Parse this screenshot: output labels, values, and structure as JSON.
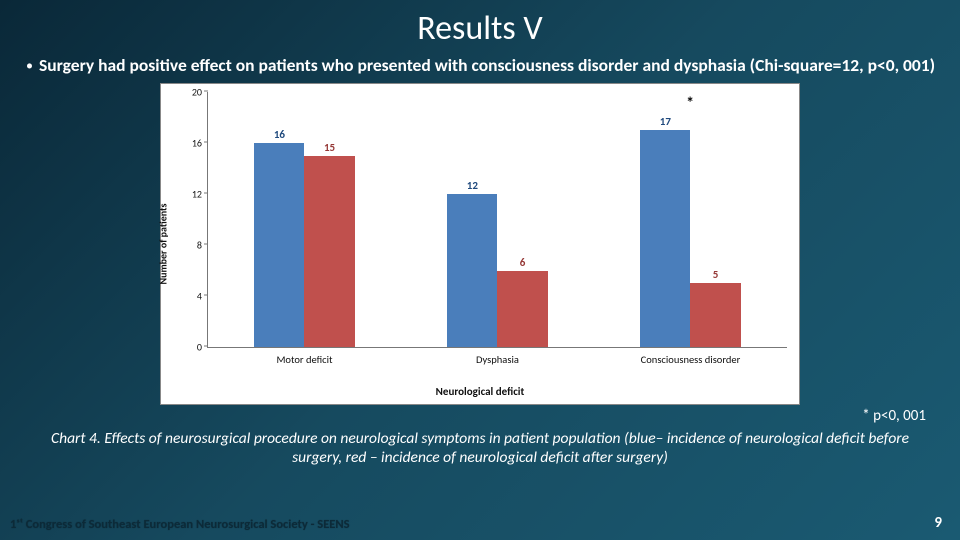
{
  "title": "Results V",
  "bullet": "Surgery had positive effect on patients who presented with consciousness disorder and dysphasia (Chi-square=12, p<0, 001)",
  "footnote": "* p<0, 001",
  "caption": "Chart  4. Effects of neurosurgical procedure on neurological symptoms in patient population (blue– incidence of neurological deficit before surgery, red – incidence of neurological deficit after surgery)",
  "footer": "1ˢᵗ Congress of Southeast European Neurosurgical Society - SEENS",
  "page": "9",
  "chart": {
    "type": "bar",
    "ylabel": "Number of patients",
    "xlabel": "Neurological deficit",
    "ylim": [
      0,
      20
    ],
    "ytick_step": 4,
    "yticks": [
      "0",
      "4",
      "8",
      "12",
      "16",
      "20"
    ],
    "categories": [
      "Motor deficit",
      "Dysphasia",
      "Consciousness disorder"
    ],
    "series": [
      {
        "name": "before",
        "color": "#4a7ebb",
        "label_color": "#1f497d",
        "values": [
          16,
          12,
          17
        ]
      },
      {
        "name": "after",
        "color": "#c0504d",
        "label_color": "#953735",
        "values": [
          15,
          6,
          5
        ]
      }
    ],
    "bar_width_pct": 26,
    "bar_gap_pct": 0,
    "group_left_offset_pct": 24,
    "significance_marker": {
      "text": "*",
      "group_index": 2
    },
    "background_color": "#ffffff",
    "axis_color": "#777777",
    "tick_fontsize": 10,
    "label_fontsize": 11
  }
}
